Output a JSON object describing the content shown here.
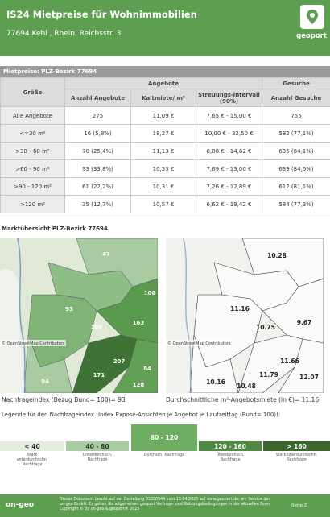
{
  "header": {
    "title": "IS24 Mietpreise für Wohnimmobilien",
    "subtitle": "77694 Kehl , Rhein, Reichsstr. 3",
    "logo": "geoport"
  },
  "section_title": "Mietpreise: PLZ-Bezirk 77694",
  "table": {
    "group_headers": [
      "Angebote",
      "Gesuche"
    ],
    "columns": [
      "Größe",
      "Anzahl Angebote",
      "Kaltmiete/ m²",
      "Streuungs-intervall (90%)",
      "Anzahl Gesuche"
    ],
    "rows": [
      [
        "Alle Angebote",
        "275",
        "11,09 €",
        "7,65 € - 15,00 €",
        "755"
      ],
      [
        "<=30 m²",
        "16 (5,8%)",
        "18,27 €",
        "10,00 € - 32,50 €",
        "582 (77,1%)"
      ],
      [
        ">30 - 60 m²",
        "70 (25,4%)",
        "11,13 €",
        "8,08 € - 14,62 €",
        "635 (84,1%)"
      ],
      [
        ">60 - 90 m²",
        "93 (33,8%)",
        "10,53 €",
        "7,69 € - 13,00 €",
        "639 (84,6%)"
      ],
      [
        ">90 - 120 m²",
        "61 (22,2%)",
        "10,31 €",
        "7,26 € - 12,89 €",
        "612 (81,1%)"
      ],
      [
        ">120 m²",
        "35 (12,7%)",
        "10,57 €",
        "6,62 € - 19,42 €",
        "584 (77,3%)"
      ]
    ]
  },
  "market": {
    "title": "Marktübersicht PLZ-Bezirk 77694",
    "maps": [
      {
        "labels": [
          "47",
          "93",
          "106",
          "106",
          "163",
          "207",
          "84",
          "171",
          "128",
          "94"
        ],
        "attribution": "© OpenStreetMap Contributors",
        "caption": "Nachfrageindex (Bezug Bund= 100)= 93"
      },
      {
        "labels": [
          "10.28",
          "11.16",
          "10.75",
          "9.67",
          "11.66",
          "10.16",
          "10.48",
          "11.79",
          "12.07"
        ],
        "attribution": "© OpenStreetMap Contributors",
        "caption": "Durchschnittliche m²-Angebotsmiete (in €)= 11.16"
      }
    ]
  },
  "legend": {
    "title": "Legende für den Nachfrageindex (Index Exposé-Ansichten je Angebot je Laufzeittag (Bund= 100)):",
    "items": [
      {
        "range": "< 40",
        "label": "Stark unterdurchschn. Nachfrage"
      },
      {
        "range": "40 - 80",
        "label": "Unterdurchsch. Nachfrage"
      },
      {
        "range": "80 - 120",
        "label": "Durchsch. Nachfrage"
      },
      {
        "range": "120 - 160",
        "label": "Überdurchsch. Nachfrage"
      },
      {
        "range": "> 160",
        "label": "Stark überdurchschn. Nachfrage"
      }
    ]
  },
  "footer": {
    "logo": "on-geo",
    "text": "Dieses Dokument beruht auf der Bestellung 03350544 vom 15.04.2025 auf www.geoport.de: ein Service der on-geo GmbH. Es gelten die allgemeinen geoport Vertrags- und Nutzungsbedingungen in der aktuellen Form. Copyright © by on-geo & geoport® 2025",
    "page": "Seite 2"
  }
}
